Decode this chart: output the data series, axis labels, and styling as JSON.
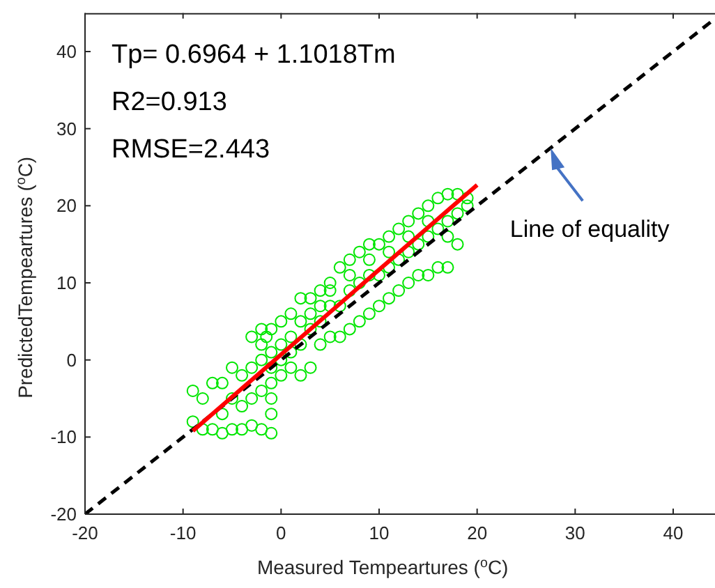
{
  "chart_data": {
    "type": "scatter",
    "xlabel": "Measured Tempeartures ($^{o}$C)",
    "ylabel": "PredictedTempeartures ($^{o}$C)",
    "xlim": [
      -20,
      45
    ],
    "ylim": [
      -20,
      45
    ],
    "xticks": [
      -20,
      -10,
      0,
      10,
      20,
      30,
      40
    ],
    "yticks": [
      -20,
      -10,
      0,
      10,
      20,
      30,
      40
    ],
    "grid": false,
    "annotations": [
      "Tp= 0.6964 + 1.1018Tm",
      "R2=0.913",
      "RMSE=2.443",
      {
        "text": "Line of equality",
        "x": 27.5,
        "y": 27.5
      }
    ],
    "series": [
      {
        "color": "#00e600",
        "marker": "circle",
        "x": [
          -9,
          -8,
          -7,
          -6,
          -5,
          -4,
          -3,
          -2,
          -1,
          -1,
          -1,
          -1,
          -1,
          -1,
          -1.5,
          -9,
          -8,
          -7,
          -6,
          -5,
          -4,
          -3,
          -2,
          -2,
          -3,
          -2,
          -1,
          0,
          1,
          2,
          3,
          4,
          5,
          6,
          7,
          8,
          9,
          10,
          11,
          12,
          13,
          14,
          15,
          16,
          17,
          18,
          19,
          19,
          0,
          1,
          2,
          3,
          4,
          5,
          6,
          7,
          8,
          9,
          10,
          11,
          12,
          13,
          14,
          15,
          16,
          17,
          18,
          0,
          1,
          2,
          3,
          4,
          5,
          6,
          7,
          8,
          9,
          10,
          11,
          12,
          13,
          14,
          15,
          16,
          17,
          18,
          17,
          -4,
          -5,
          -6,
          -3,
          -2,
          0,
          1,
          2,
          3,
          4,
          5,
          7,
          9,
          11,
          13,
          15
        ],
        "values": [
          -8,
          -9,
          -9,
          -9.5,
          -9,
          -9,
          -8.5,
          -9,
          -9.5,
          -7,
          -5,
          -3,
          -1,
          1,
          3,
          -4,
          -5,
          -3,
          -3,
          -5,
          -6,
          -1,
          0,
          2,
          3,
          4,
          4,
          5,
          6,
          8,
          8,
          9,
          10,
          12,
          13,
          14,
          15,
          15,
          16,
          17,
          18,
          19,
          20,
          21,
          21.5,
          21.5,
          21,
          20,
          0,
          1,
          2,
          4,
          5,
          7,
          7,
          9,
          10,
          11,
          11,
          12,
          13,
          14,
          15,
          16,
          17,
          18,
          19,
          -2,
          -1,
          -2,
          -1,
          2,
          3,
          3,
          4,
          5,
          6,
          7,
          8,
          9,
          10,
          11,
          11,
          12,
          12,
          15,
          16,
          -2,
          -1,
          -7,
          -5,
          -4,
          2,
          3,
          5,
          6,
          7,
          9,
          11,
          13,
          14,
          16,
          18
        ]
      },
      {
        "type": "line",
        "color": "#000000",
        "line_style": "dashed",
        "marker": "none",
        "x": [
          -20,
          45
        ],
        "values": [
          -20,
          45
        ]
      },
      {
        "type": "line",
        "color": "#ff0000",
        "line_style": "solid",
        "marker": "none",
        "x": [
          -9,
          20
        ],
        "values": [
          -9.2,
          22.7
        ]
      }
    ]
  }
}
